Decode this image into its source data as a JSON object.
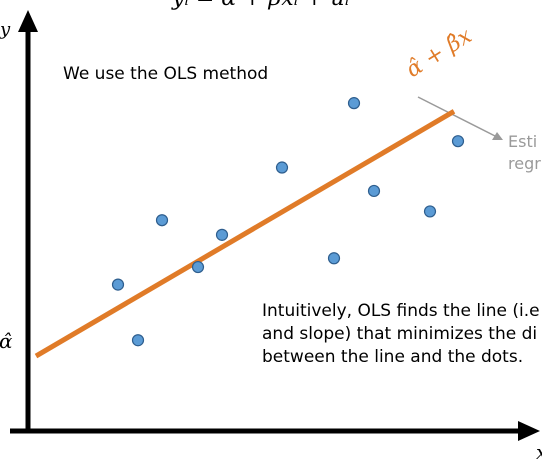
{
  "equation": "yᵢ = α + βxᵢ + uᵢ",
  "annotations": {
    "method_note": "We use the OLS method",
    "fitted_line_label": "α̂ + β̂x",
    "estimate_note_line1": "Esti",
    "estimate_note_line2": "regr",
    "intuition_line1": "Intuitively, OLS finds the line (i.e",
    "intuition_line2": "and slope) that minimizes the di",
    "intuition_line3": "between the line and the dots.",
    "intercept_label": "α̂",
    "y_axis_label": "y",
    "x_axis_label": "x"
  },
  "colors": {
    "line": "#E07B28",
    "dot_fill": "#5B9BD5",
    "dot_stroke": "#2E5E8E",
    "axis": "#000000",
    "pointer": "#9a9a9a"
  },
  "points": [
    {
      "x": 1.0,
      "y": 3.6
    },
    {
      "x": 1.5,
      "y": 1.7
    },
    {
      "x": 2.1,
      "y": 5.8
    },
    {
      "x": 3.0,
      "y": 4.2
    },
    {
      "x": 3.6,
      "y": 5.3
    },
    {
      "x": 5.1,
      "y": 7.6
    },
    {
      "x": 6.4,
      "y": 4.5
    },
    {
      "x": 6.9,
      "y": 9.8
    },
    {
      "x": 7.4,
      "y": 6.8
    },
    {
      "x": 8.8,
      "y": 6.1
    },
    {
      "x": 9.5,
      "y": 8.5
    }
  ],
  "fitted_line": {
    "intercept": 2.0,
    "slope": 0.8
  }
}
